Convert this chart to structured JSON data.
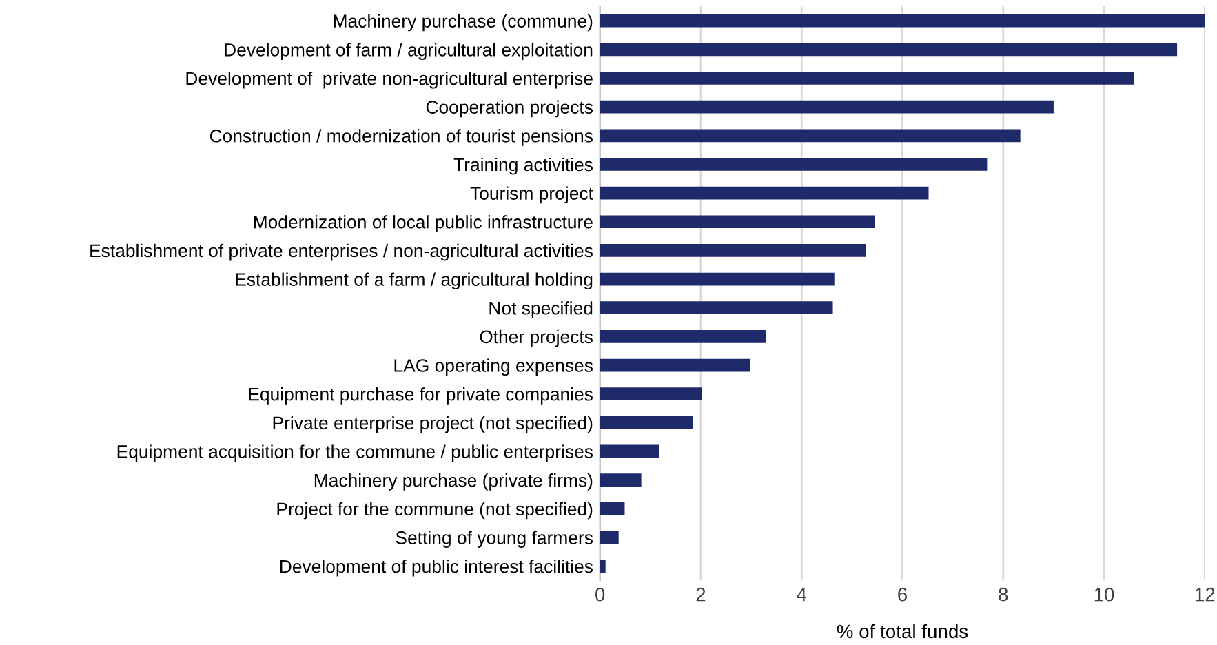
{
  "chart_data": {
    "type": "bar",
    "orientation": "horizontal",
    "xlabel": "% of total funds",
    "categories": [
      "Machinery purchase (commune)",
      "Development of farm / agricultural exploitation",
      "Development of  private non-agricultural enterprise",
      "Cooperation projects",
      "Construction / modernization of tourist pensions",
      "Training activities",
      "Tourism project",
      "Modernization of local public infrastructure",
      "Establishment of private enterprises / non-agricultural activities",
      "Establishment of a farm / agricultural holding",
      "Not specified",
      "Other projects",
      "LAG operating expenses",
      "Equipment purchase for private companies",
      "Private enterprise project (not specified)",
      "Equipment acquisition for the commune / public enterprises",
      "Machinery purchase (private firms)",
      "Project for the commune (not specified)",
      "Setting of young farmers",
      "Development of public interest facilities"
    ],
    "values": [
      12.0,
      11.45,
      10.6,
      9.0,
      8.34,
      7.68,
      6.52,
      5.45,
      5.28,
      4.65,
      4.62,
      3.29,
      2.98,
      2.02,
      1.84,
      1.18,
      0.82,
      0.49,
      0.37,
      0.11
    ],
    "color": "#1f2a6b",
    "xlim": [
      0,
      12
    ],
    "xticks": [
      0,
      2,
      4,
      6,
      8,
      10,
      12
    ],
    "grid": "x"
  }
}
